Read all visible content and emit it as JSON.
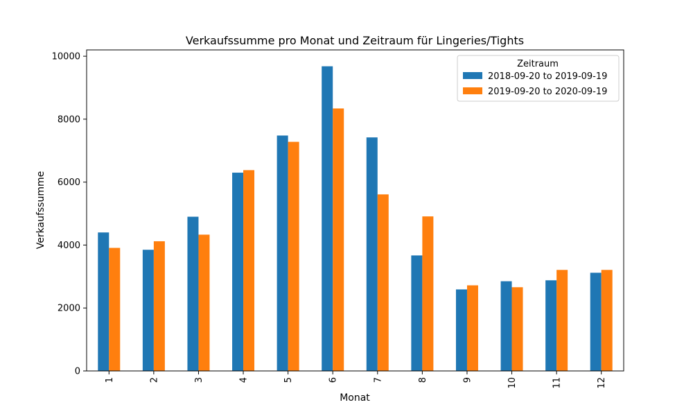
{
  "chart_data": {
    "type": "bar",
    "title": "Verkaufssumme pro Monat und Zeitraum für Lingeries/Tights",
    "xlabel": "Monat",
    "ylabel": "Verkaufssumme",
    "categories": [
      "1",
      "2",
      "3",
      "4",
      "5",
      "6",
      "7",
      "8",
      "9",
      "10",
      "11",
      "12"
    ],
    "ylim": [
      0,
      10200
    ],
    "yticks": [
      "0",
      "2000",
      "4000",
      "6000",
      "8000",
      "10000"
    ],
    "legend": {
      "title": "Zeitraum",
      "placement": "top-right"
    },
    "grid": false,
    "series": [
      {
        "name": "2018-09-20 to 2019-09-19",
        "color": "#1f77b4",
        "values": [
          4400,
          3850,
          4900,
          6300,
          7480,
          9680,
          7420,
          3670,
          2590,
          2850,
          2880,
          3120
        ]
      },
      {
        "name": "2019-09-20 to 2020-09-19",
        "color": "#ff7f0e",
        "values": [
          3910,
          4120,
          4330,
          6380,
          7280,
          8340,
          5610,
          4910,
          2720,
          2660,
          3210,
          3210
        ]
      }
    ]
  }
}
